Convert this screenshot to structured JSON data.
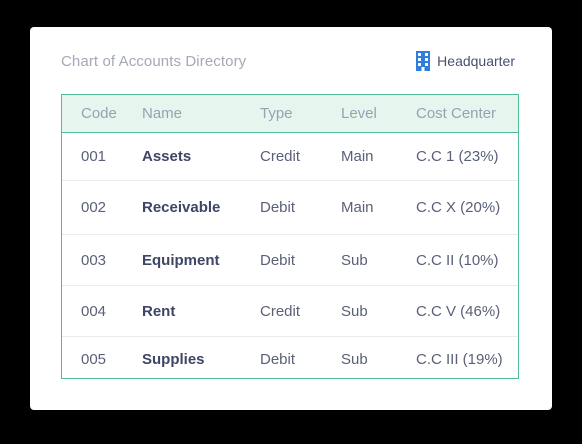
{
  "header": {
    "title": "Chart of Accounts Directory",
    "branch_label": "Headquarter",
    "branch_icon": "building-icon"
  },
  "colors": {
    "accent": "#4fbe95",
    "header_bg": "#e6f6ef",
    "branch_icon": "#2f7de1"
  },
  "table": {
    "columns": [
      "Code",
      "Name",
      "Type",
      "Level",
      "Cost Center"
    ],
    "rows": [
      {
        "code": "001",
        "name": "Assets",
        "type": "Credit",
        "level": "Main",
        "cost_center": "C.C 1 (23%)"
      },
      {
        "code": "002",
        "name": "Receivable",
        "type": "Debit",
        "level": "Main",
        "cost_center": "C.C X (20%)"
      },
      {
        "code": "003",
        "name": "Equipment",
        "type": "Debit",
        "level": "Sub",
        "cost_center": "C.C II (10%)"
      },
      {
        "code": "004",
        "name": "Rent",
        "type": "Credit",
        "level": "Sub",
        "cost_center": "C.C V (46%)"
      },
      {
        "code": "005",
        "name": "Supplies",
        "type": "Debit",
        "level": "Sub",
        "cost_center": "C.C III (19%)"
      }
    ]
  }
}
